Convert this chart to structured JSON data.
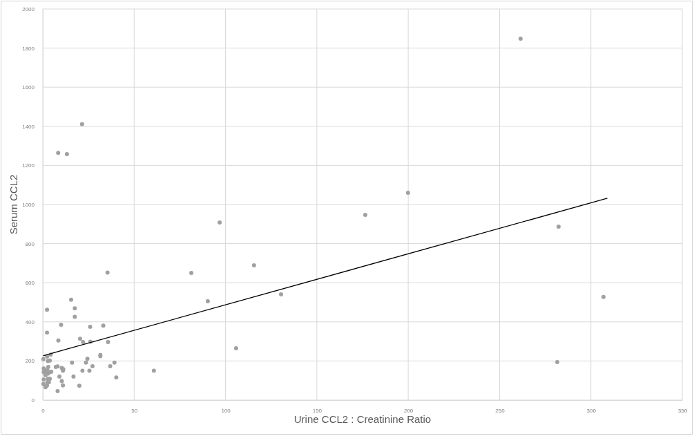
{
  "chart_data": {
    "type": "scatter",
    "xlabel": "Urine CCL2 : Creatinine Ratio",
    "ylabel": "Serum CCL2",
    "xlim": [
      0,
      350
    ],
    "xticks": [
      0,
      50,
      100,
      150,
      200,
      250,
      300,
      350
    ],
    "ylim": [
      0,
      2000
    ],
    "yticks": [
      0,
      200,
      400,
      600,
      800,
      1000,
      1200,
      1400,
      1600,
      1800,
      2000
    ],
    "grid": true,
    "marker": "circle",
    "series": [
      {
        "color": "#a0a0a0",
        "x": [
          35.4,
          15.5,
          17.5,
          17.5,
          2.3,
          10,
          2.3,
          8.5,
          25.9,
          33.1,
          20.4,
          22,
          26,
          35.7,
          31.5,
          31.5,
          24.4,
          2.3,
          0.3,
          2.8,
          3.8,
          4.3,
          16,
          23.6,
          39.2,
          8.1,
          7.1,
          3,
          36.9,
          27.2,
          10.4,
          11.2,
          11,
          21.7,
          25.5,
          60.8,
          0.5,
          1,
          2.5,
          0.5,
          1.5,
          3.6,
          4.6,
          3,
          1.5,
          9.1,
          16.8,
          40.2,
          0.5,
          2.8,
          3.8,
          2.5,
          3.3,
          10.4,
          0.3,
          2.3,
          11,
          20,
          1.5,
          8.1,
          8.4,
          13.2,
          21.5,
          96.8,
          81.3,
          90.3,
          105.8,
          115.6,
          130.4,
          176.5,
          199.9,
          261.5,
          282.3,
          281.6,
          306.9
        ],
        "values": [
          652,
          513,
          469,
          426,
          462,
          385,
          345,
          305,
          375,
          381,
          314,
          297,
          299,
          297,
          231,
          224,
          211,
          223,
          209,
          200,
          202,
          232,
          192,
          192,
          192,
          172,
          170,
          170,
          173,
          173,
          164,
          158,
          150,
          150,
          150,
          150,
          162,
          155,
          152,
          143,
          141,
          143,
          145,
          136,
          127,
          120,
          120,
          116,
          105,
          109,
          109,
          91,
          91,
          97,
          82,
          75,
          75,
          73,
          66,
          46,
          1264,
          1258,
          1411,
          908,
          650,
          505,
          265,
          689,
          541,
          947,
          1060,
          1848,
          887,
          194,
          527
        ]
      },
      {
        "type": "line",
        "color": "#000000",
        "line_style": "solid",
        "marker": "none",
        "x": [
          0.2,
          309
        ],
        "values": [
          227,
          1032
        ]
      }
    ]
  }
}
